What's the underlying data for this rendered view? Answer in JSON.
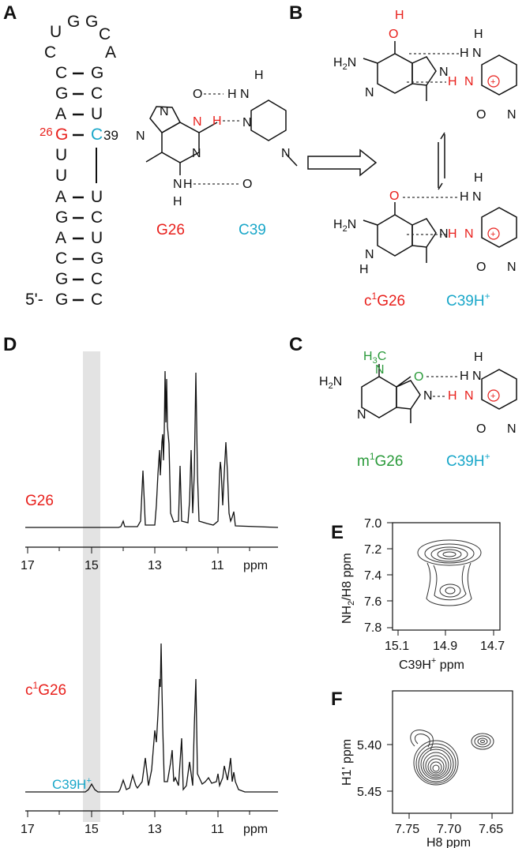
{
  "colors": {
    "red": "#e8201c",
    "cyan": "#19a7c9",
    "green": "#2a9a3a",
    "black": "#111111",
    "shade": "#e3e3e3"
  },
  "panels": {
    "a": "A",
    "b": "B",
    "c": "C",
    "d": "D",
    "e": "E",
    "f": "F"
  },
  "hairpin": {
    "loop": [
      "U",
      "G",
      "G",
      "C",
      "C",
      "A"
    ],
    "left": [
      "C",
      "G",
      "A",
      "G",
      "U",
      "U",
      "A",
      "G",
      "A",
      "C",
      "G",
      "G"
    ],
    "right": [
      "G",
      "C",
      "U",
      "C",
      "U",
      "C",
      "U",
      "G",
      "C"
    ],
    "num26": "26",
    "num39": "39",
    "five_prime": "5'-"
  },
  "labels": {
    "g26": "G26",
    "c39": "C39",
    "c1": "c",
    "c1_sup": "1",
    "c1_g26": "G26",
    "c39h": "C39H",
    "plus": "+",
    "m1": "m",
    "m1_sup": "1",
    "m1_g26": "G26",
    "ch3": "H",
    "ch3_sub": "3",
    "ch3_c": "C"
  },
  "atoms": {
    "H": "H",
    "N": "N",
    "O": "O",
    "NH2": "H",
    "two": "2"
  },
  "spectra": {
    "label_top": "G26",
    "label_bot_pre": "c",
    "label_bot_sup": "1",
    "label_bot": "G26",
    "peak_label": "C39H",
    "peak_label_sup": "+",
    "ticks": [
      "17",
      "15",
      "13",
      "11"
    ],
    "unit": "ppm",
    "shade_range_ppm": [
      14.65,
      15.2
    ]
  },
  "panel_e": {
    "ylabel": "NH",
    "ylabel_sub": "2",
    "ylabel_rest": "/H8  ppm",
    "xlabel": "C39H",
    "xlabel_sup": "+",
    "xlabel_rest": " ppm",
    "yticks": [
      "7.0",
      "7.2",
      "7.4",
      "7.6",
      "7.8"
    ],
    "xticks": [
      "15.1",
      "14.9",
      "14.7"
    ]
  },
  "panel_f": {
    "ylabel": "H1' ppm",
    "xlabel": "H8  ppm",
    "yticks": [
      "5.40",
      "5.45"
    ],
    "xticks": [
      "7.75",
      "7.70",
      "7.65"
    ]
  }
}
